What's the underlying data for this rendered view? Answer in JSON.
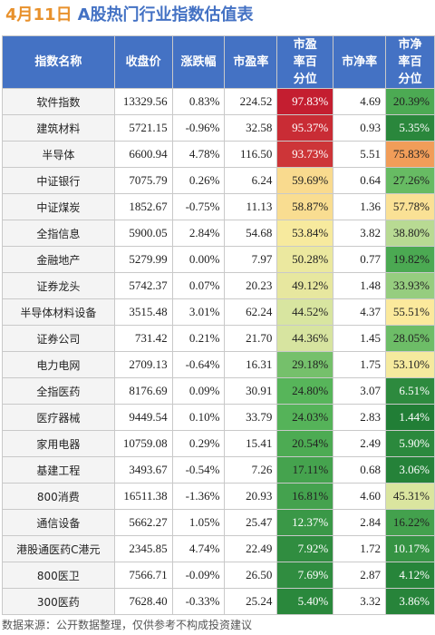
{
  "title": {
    "date": "4月11日",
    "text": "A股热门行业指数估值表"
  },
  "columns": [
    "指数名称",
    "收盘价",
    "涨跌幅",
    "市盈率",
    "市盈率百分位",
    "市净率",
    "市净率百分位"
  ],
  "colors": {
    "header_bg": "#4472c4",
    "up": "#e02020",
    "down": "#2e9e36",
    "percentile_scale": [
      "#1e7b34",
      "#57b55a",
      "#cfe3a0",
      "#fbeb9e",
      "#f3a25b",
      "#c0112c"
    ]
  },
  "rows": [
    {
      "name": "软件指数",
      "close": "13329.56",
      "change": "0.83%",
      "change_value": 0.83,
      "pe": "224.52",
      "pe_pct": "97.83%",
      "pe_pct_value": 97.83,
      "pb": "4.69",
      "pb_pct": "20.39%",
      "pb_pct_value": 20.39
    },
    {
      "name": "建筑材料",
      "close": "5721.15",
      "change": "-0.96%",
      "change_value": -0.96,
      "pe": "32.58",
      "pe_pct": "95.37%",
      "pe_pct_value": 95.37,
      "pb": "0.93",
      "pb_pct": "5.35%",
      "pb_pct_value": 5.35
    },
    {
      "name": "半导体",
      "close": "6600.94",
      "change": "4.78%",
      "change_value": 4.78,
      "pe": "116.50",
      "pe_pct": "93.73%",
      "pe_pct_value": 93.73,
      "pb": "5.51",
      "pb_pct": "75.83%",
      "pb_pct_value": 75.83
    },
    {
      "name": "中证银行",
      "close": "7075.79",
      "change": "0.26%",
      "change_value": 0.26,
      "pe": "6.24",
      "pe_pct": "59.69%",
      "pe_pct_value": 59.69,
      "pb": "0.64",
      "pb_pct": "27.26%",
      "pb_pct_value": 27.26
    },
    {
      "name": "中证煤炭",
      "close": "1852.67",
      "change": "-0.75%",
      "change_value": -0.75,
      "pe": "11.13",
      "pe_pct": "58.87%",
      "pe_pct_value": 58.87,
      "pb": "1.36",
      "pb_pct": "57.78%",
      "pb_pct_value": 57.78
    },
    {
      "name": "全指信息",
      "close": "5900.05",
      "change": "2.84%",
      "change_value": 2.84,
      "pe": "54.68",
      "pe_pct": "53.84%",
      "pe_pct_value": 53.84,
      "pb": "3.82",
      "pb_pct": "38.80%",
      "pb_pct_value": 38.8
    },
    {
      "name": "金融地产",
      "close": "5279.99",
      "change": "0.00%",
      "change_value": 0,
      "pe": "7.97",
      "pe_pct": "50.28%",
      "pe_pct_value": 50.28,
      "pb": "0.77",
      "pb_pct": "19.82%",
      "pb_pct_value": 19.82
    },
    {
      "name": "证券龙头",
      "close": "5742.37",
      "change": "0.07%",
      "change_value": 0.07,
      "pe": "20.23",
      "pe_pct": "49.12%",
      "pe_pct_value": 49.12,
      "pb": "1.48",
      "pb_pct": "33.93%",
      "pb_pct_value": 33.93
    },
    {
      "name": "半导体材料设备",
      "close": "3515.48",
      "change": "3.01%",
      "change_value": 3.01,
      "pe": "62.24",
      "pe_pct": "44.52%",
      "pe_pct_value": 44.52,
      "pb": "4.37",
      "pb_pct": "55.51%",
      "pb_pct_value": 55.51
    },
    {
      "name": "证券公司",
      "close": "731.42",
      "change": "0.21%",
      "change_value": 0.21,
      "pe": "21.70",
      "pe_pct": "44.36%",
      "pe_pct_value": 44.36,
      "pb": "1.45",
      "pb_pct": "28.05%",
      "pb_pct_value": 28.05
    },
    {
      "name": "电力电网",
      "close": "2709.13",
      "change": "-0.64%",
      "change_value": -0.64,
      "pe": "16.31",
      "pe_pct": "29.18%",
      "pe_pct_value": 29.18,
      "pb": "1.75",
      "pb_pct": "53.10%",
      "pb_pct_value": 53.1
    },
    {
      "name": "全指医药",
      "close": "8176.69",
      "change": "0.09%",
      "change_value": 0.09,
      "pe": "30.91",
      "pe_pct": "24.80%",
      "pe_pct_value": 24.8,
      "pb": "3.07",
      "pb_pct": "6.51%",
      "pb_pct_value": 6.51
    },
    {
      "name": "医疗器械",
      "close": "9449.54",
      "change": "0.10%",
      "change_value": 0.1,
      "pe": "33.79",
      "pe_pct": "24.03%",
      "pe_pct_value": 24.03,
      "pb": "2.83",
      "pb_pct": "1.44%",
      "pb_pct_value": 1.44
    },
    {
      "name": "家用电器",
      "close": "10759.08",
      "change": "0.29%",
      "change_value": 0.29,
      "pe": "15.41",
      "pe_pct": "20.54%",
      "pe_pct_value": 20.54,
      "pb": "2.49",
      "pb_pct": "5.90%",
      "pb_pct_value": 5.9
    },
    {
      "name": "基建工程",
      "close": "3493.67",
      "change": "-0.54%",
      "change_value": -0.54,
      "pe": "7.26",
      "pe_pct": "17.11%",
      "pe_pct_value": 17.11,
      "pb": "0.68",
      "pb_pct": "3.06%",
      "pb_pct_value": 3.06
    },
    {
      "name": "800消费",
      "close": "16511.38",
      "change": "-1.36%",
      "change_value": -1.36,
      "pe": "20.93",
      "pe_pct": "16.81%",
      "pe_pct_value": 16.81,
      "pb": "4.60",
      "pb_pct": "45.31%",
      "pb_pct_value": 45.31
    },
    {
      "name": "通信设备",
      "close": "5662.27",
      "change": "1.05%",
      "change_value": 1.05,
      "pe": "25.47",
      "pe_pct": "12.37%",
      "pe_pct_value": 12.37,
      "pb": "2.84",
      "pb_pct": "16.22%",
      "pb_pct_value": 16.22
    },
    {
      "name": "港股通医药C港元",
      "close": "2345.85",
      "change": "4.74%",
      "change_value": 4.74,
      "pe": "22.49",
      "pe_pct": "7.92%",
      "pe_pct_value": 7.92,
      "pb": "1.72",
      "pb_pct": "10.17%",
      "pb_pct_value": 10.17
    },
    {
      "name": "800医卫",
      "close": "7566.71",
      "change": "-0.09%",
      "change_value": -0.09,
      "pe": "26.50",
      "pe_pct": "7.69%",
      "pe_pct_value": 7.69,
      "pb": "2.87",
      "pb_pct": "4.12%",
      "pb_pct_value": 4.12
    },
    {
      "name": "300医药",
      "close": "7628.40",
      "change": "-0.33%",
      "change_value": -0.33,
      "pe": "25.24",
      "pe_pct": "5.40%",
      "pe_pct_value": 5.4,
      "pb": "3.32",
      "pb_pct": "3.86%",
      "pb_pct_value": 3.86
    }
  ],
  "footer": "数据来源：公开数据整理，仅供参考不构成投资建议"
}
